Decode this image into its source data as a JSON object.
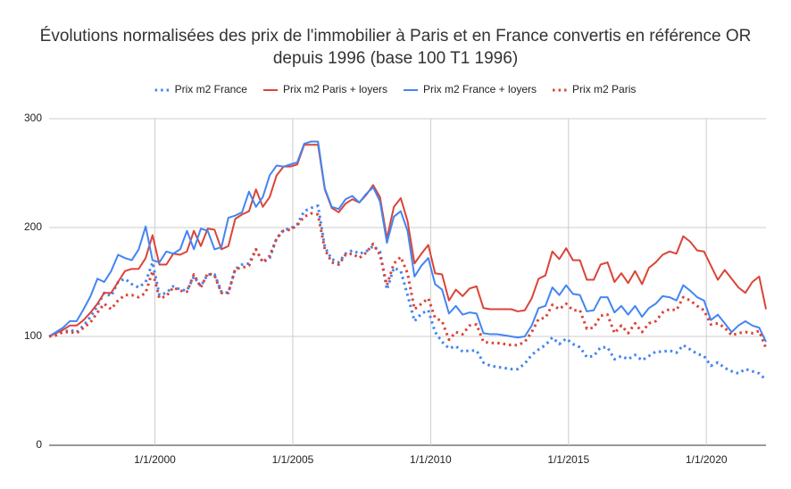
{
  "chart_data": {
    "type": "line",
    "title": [
      "Évolutions normalisées des prix de l'immobilier à Paris et en France convertis en référence OR",
      "depuis 1996 (base 100 T1 1996)"
    ],
    "x": [
      "1996-03-01",
      "1996-06-01",
      "1996-09-01",
      "1996-12-01",
      "1997-03-01",
      "1997-06-01",
      "1997-09-01",
      "1997-12-01",
      "1998-03-01",
      "1998-06-01",
      "1998-09-01",
      "1998-12-01",
      "1999-03-01",
      "1999-06-01",
      "1999-09-01",
      "1999-12-01",
      "2000-03-01",
      "2000-06-01",
      "2000-09-01",
      "2000-12-01",
      "2001-03-01",
      "2001-06-01",
      "2001-09-01",
      "2001-12-01",
      "2002-03-01",
      "2002-06-01",
      "2002-09-01",
      "2002-12-01",
      "2003-03-01",
      "2003-06-01",
      "2003-09-01",
      "2003-12-01",
      "2004-03-01",
      "2004-06-01",
      "2004-09-01",
      "2004-12-01",
      "2005-03-01",
      "2005-06-01",
      "2005-09-01",
      "2005-12-01",
      "2006-03-01",
      "2006-06-01",
      "2006-09-01",
      "2006-12-01",
      "2007-03-01",
      "2007-06-01",
      "2007-09-01",
      "2007-12-01",
      "2008-03-01",
      "2008-06-01",
      "2008-09-01",
      "2008-12-01",
      "2009-03-01",
      "2009-06-01",
      "2009-09-01",
      "2009-12-01",
      "2010-03-01",
      "2010-06-01",
      "2010-09-01",
      "2010-12-01",
      "2011-03-01",
      "2011-06-01",
      "2011-09-01",
      "2011-12-01",
      "2012-03-01",
      "2012-06-01",
      "2012-09-01",
      "2012-12-01",
      "2013-03-01",
      "2013-06-01",
      "2013-09-01",
      "2013-12-01",
      "2014-03-01",
      "2014-06-01",
      "2014-09-01",
      "2014-12-01",
      "2015-03-01",
      "2015-06-01",
      "2015-09-01",
      "2015-12-01",
      "2016-03-01",
      "2016-06-01",
      "2016-09-01",
      "2016-12-01",
      "2017-03-01",
      "2017-06-01",
      "2017-09-01",
      "2017-12-01",
      "2018-03-01",
      "2018-06-01",
      "2018-09-01",
      "2018-12-01",
      "2019-03-01",
      "2019-06-01",
      "2019-09-01",
      "2019-12-01",
      "2020-03-01",
      "2020-06-01",
      "2020-09-01",
      "2020-12-01",
      "2021-03-01",
      "2021-06-01",
      "2021-09-01",
      "2021-12-01",
      "2022-03-01"
    ],
    "series": [
      {
        "name": "Prix m2 France",
        "color": "#4285f4",
        "dash": "dotted",
        "values": [
          100,
          102,
          104,
          106,
          104,
          110,
          118,
          128,
          140,
          137,
          150,
          153,
          148,
          145,
          150,
          168,
          138,
          140,
          146,
          143,
          142,
          155,
          146,
          157,
          157,
          141,
          140,
          162,
          166,
          167,
          180,
          168,
          172,
          190,
          198,
          199,
          203,
          215,
          218,
          220,
          182,
          171,
          168,
          176,
          179,
          176,
          178,
          183,
          178,
          143,
          163,
          160,
          138,
          114,
          121,
          124,
          104,
          95,
          89,
          91,
          86,
          87,
          87,
          76,
          73,
          72,
          71,
          70,
          70,
          75,
          83,
          88,
          92,
          99,
          93,
          98,
          93,
          90,
          81,
          82,
          90,
          90,
          79,
          82,
          79,
          83,
          78,
          82,
          86,
          86,
          87,
          85,
          92,
          88,
          84,
          82,
          73,
          76,
          71,
          68,
          66,
          70,
          68,
          66,
          60
        ]
      },
      {
        "name": "Prix m2 Paris + loyers",
        "color": "#db4437",
        "dash": "solid",
        "values": [
          100,
          103,
          106,
          110,
          110,
          115,
          122,
          130,
          140,
          140,
          150,
          160,
          162,
          162,
          172,
          193,
          166,
          166,
          176,
          175,
          178,
          197,
          183,
          199,
          198,
          180,
          183,
          208,
          212,
          215,
          235,
          219,
          228,
          248,
          256,
          256,
          258,
          276,
          276,
          276,
          235,
          218,
          214,
          222,
          226,
          223,
          230,
          239,
          228,
          190,
          219,
          227,
          206,
          167,
          176,
          184,
          158,
          157,
          133,
          143,
          137,
          144,
          146,
          126,
          125,
          125,
          125,
          125,
          123,
          124,
          135,
          153,
          156,
          178,
          171,
          181,
          170,
          170,
          152,
          152,
          166,
          168,
          150,
          158,
          149,
          160,
          148,
          163,
          168,
          175,
          178,
          176,
          192,
          187,
          179,
          178,
          165,
          152,
          161,
          153,
          145,
          140,
          150,
          155,
          125
        ]
      },
      {
        "name": "Prix m2 France + loyers",
        "color": "#4285f4",
        "dash": "solid",
        "values": [
          100,
          104,
          108,
          114,
          114,
          125,
          137,
          153,
          150,
          160,
          175,
          172,
          170,
          180,
          201,
          170,
          168,
          178,
          176,
          180,
          197,
          180,
          199,
          197,
          180,
          182,
          209,
          211,
          214,
          233,
          219,
          228,
          248,
          257,
          256,
          258,
          260,
          277,
          279,
          279,
          236,
          219,
          217,
          226,
          229,
          223,
          231,
          237,
          224,
          186,
          210,
          215,
          197,
          155,
          165,
          172,
          148,
          143,
          121,
          128,
          120,
          122,
          121,
          103,
          102,
          102,
          101,
          100,
          99,
          100,
          110,
          126,
          128,
          145,
          138,
          147,
          139,
          138,
          123,
          124,
          136,
          136,
          122,
          128,
          120,
          128,
          118,
          126,
          130,
          137,
          136,
          133,
          147,
          142,
          136,
          133,
          115,
          120,
          112,
          104,
          110,
          114,
          110,
          108,
          95
        ]
      },
      {
        "name": "Prix m2 Paris",
        "color": "#db4437",
        "dash": "dotted",
        "values": [
          100,
          101,
          104,
          104,
          103,
          108,
          113,
          122,
          130,
          125,
          133,
          138,
          138,
          136,
          140,
          160,
          135,
          137,
          145,
          142,
          141,
          157,
          145,
          158,
          156,
          140,
          140,
          162,
          163,
          165,
          180,
          168,
          174,
          190,
          197,
          198,
          202,
          210,
          213,
          212,
          180,
          168,
          166,
          175,
          176,
          172,
          177,
          185,
          175,
          147,
          167,
          173,
          158,
          125,
          130,
          135,
          117,
          114,
          97,
          104,
          102,
          110,
          111,
          95,
          94,
          94,
          93,
          92,
          92,
          95,
          104,
          116,
          117,
          129,
          125,
          130,
          124,
          124,
          107,
          108,
          119,
          120,
          103,
          110,
          103,
          112,
          104,
          112,
          114,
          122,
          125,
          124,
          136,
          133,
          128,
          124,
          111,
          112,
          108,
          101,
          103,
          104,
          103,
          105,
          89
        ]
      }
    ],
    "xlim": [
      "1996-03-01",
      "2022-03-01"
    ],
    "xticks": [
      {
        "value": "2000-01-01",
        "label": "1/1/2000"
      },
      {
        "value": "2005-01-01",
        "label": "1/1/2005"
      },
      {
        "value": "2010-01-01",
        "label": "1/1/2010"
      },
      {
        "value": "2015-01-01",
        "label": "1/1/2015"
      },
      {
        "value": "2020-01-01",
        "label": "1/1/2020"
      }
    ],
    "ylim": [
      0,
      300
    ],
    "yticks": [
      0,
      100,
      200,
      300
    ],
    "grid": true,
    "legend": "top"
  }
}
